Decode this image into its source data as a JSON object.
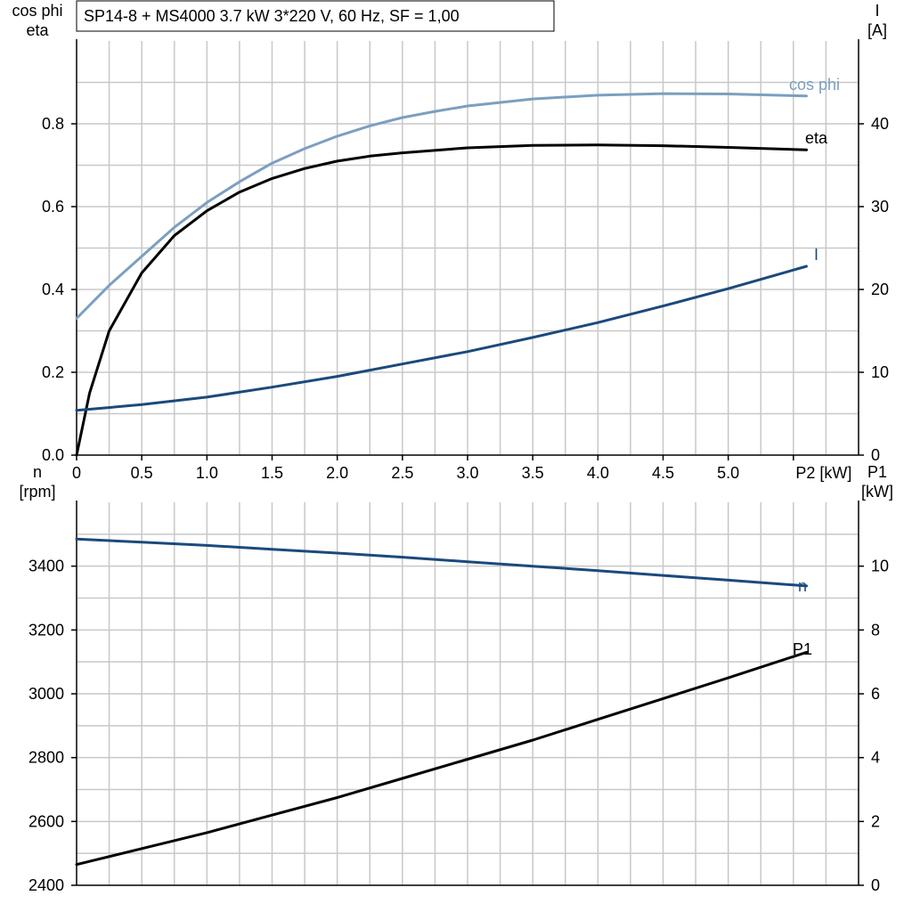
{
  "title": "SP14-8 + MS4000   3.7 kW   3*220 V, 60 Hz, SF = 1,00",
  "colors": {
    "grid": "#c8c8c8",
    "axis": "#000000",
    "cosphi": "#7b9fc0",
    "eta": "#000000",
    "current": "#1a4a7c",
    "speed": "#1a4a7c",
    "p1": "#000000"
  },
  "chart_data": [
    {
      "type": "line",
      "x_label": "P2 [kW]",
      "x_ticks": [
        "0",
        "0.5",
        "1.0",
        "1.5",
        "2.0",
        "2.5",
        "3.0",
        "3.5",
        "4.0",
        "4.5",
        "5.0",
        "P2 [kW]"
      ],
      "xlim": [
        0,
        6.0
      ],
      "y_left_label": [
        "cos phi",
        "eta"
      ],
      "y_left_ticks": [
        "0.0",
        "0.2",
        "0.4",
        "0.6",
        "0.8"
      ],
      "y_left_lim": [
        0,
        1.0
      ],
      "y_right_label": [
        "I",
        "[A]"
      ],
      "y_right_ticks": [
        "0",
        "10",
        "20",
        "30",
        "40"
      ],
      "y_right_lim": [
        0,
        50
      ],
      "grid": true,
      "series": [
        {
          "name": "cos phi",
          "axis": "left",
          "color_key": "cosphi",
          "points": [
            [
              0,
              0.33
            ],
            [
              0.25,
              0.41
            ],
            [
              0.5,
              0.48
            ],
            [
              0.75,
              0.55
            ],
            [
              1.0,
              0.61
            ],
            [
              1.25,
              0.66
            ],
            [
              1.5,
              0.705
            ],
            [
              1.75,
              0.74
            ],
            [
              2.0,
              0.77
            ],
            [
              2.25,
              0.795
            ],
            [
              2.5,
              0.815
            ],
            [
              2.75,
              0.83
            ],
            [
              3.0,
              0.843
            ],
            [
              3.5,
              0.86
            ],
            [
              4.0,
              0.869
            ],
            [
              4.5,
              0.873
            ],
            [
              5.0,
              0.872
            ],
            [
              5.6,
              0.867
            ]
          ]
        },
        {
          "name": "eta",
          "axis": "left",
          "color_key": "eta",
          "points": [
            [
              0,
              0.0
            ],
            [
              0.1,
              0.15
            ],
            [
              0.25,
              0.3
            ],
            [
              0.5,
              0.44
            ],
            [
              0.75,
              0.53
            ],
            [
              1.0,
              0.59
            ],
            [
              1.25,
              0.635
            ],
            [
              1.5,
              0.668
            ],
            [
              1.75,
              0.692
            ],
            [
              2.0,
              0.71
            ],
            [
              2.25,
              0.722
            ],
            [
              2.5,
              0.73
            ],
            [
              3.0,
              0.742
            ],
            [
              3.5,
              0.748
            ],
            [
              4.0,
              0.749
            ],
            [
              4.5,
              0.747
            ],
            [
              5.0,
              0.743
            ],
            [
              5.6,
              0.737
            ]
          ]
        },
        {
          "name": "I",
          "axis": "right",
          "color_key": "current",
          "points": [
            [
              0,
              5.4
            ],
            [
              0.5,
              6.1
            ],
            [
              1.0,
              7.0
            ],
            [
              1.5,
              8.2
            ],
            [
              2.0,
              9.5
            ],
            [
              2.5,
              11.0
            ],
            [
              3.0,
              12.5
            ],
            [
              3.5,
              14.2
            ],
            [
              4.0,
              16.0
            ],
            [
              4.5,
              18.0
            ],
            [
              5.0,
              20.1
            ],
            [
              5.6,
              22.8
            ]
          ]
        }
      ]
    },
    {
      "type": "line",
      "x_ticks": [],
      "xlim": [
        0,
        6.0
      ],
      "y_left_label": [
        "n",
        "[rpm]"
      ],
      "y_left_ticks": [
        "2400",
        "2600",
        "2800",
        "3000",
        "3200",
        "3400"
      ],
      "y_left_lim": [
        2400,
        3600
      ],
      "y_right_label": [
        "P1",
        "[kW]"
      ],
      "y_right_ticks": [
        "0",
        "2",
        "4",
        "6",
        "8",
        "10"
      ],
      "y_right_lim": [
        0,
        12
      ],
      "grid": true,
      "series": [
        {
          "name": "n",
          "axis": "left",
          "color_key": "speed",
          "points": [
            [
              0,
              3485
            ],
            [
              0.5,
              3475
            ],
            [
              1.0,
              3465
            ],
            [
              1.5,
              3453
            ],
            [
              2.0,
              3441
            ],
            [
              2.5,
              3428
            ],
            [
              3.0,
              3414
            ],
            [
              3.5,
              3400
            ],
            [
              4.0,
              3386
            ],
            [
              4.5,
              3371
            ],
            [
              5.0,
              3356
            ],
            [
              5.6,
              3338
            ]
          ]
        },
        {
          "name": "P1",
          "axis": "right",
          "color_key": "p1",
          "points": [
            [
              0,
              0.65
            ],
            [
              0.5,
              1.15
            ],
            [
              1.0,
              1.65
            ],
            [
              1.5,
              2.2
            ],
            [
              2.0,
              2.75
            ],
            [
              2.5,
              3.35
            ],
            [
              3.0,
              3.95
            ],
            [
              3.5,
              4.55
            ],
            [
              4.0,
              5.2
            ],
            [
              4.5,
              5.85
            ],
            [
              5.0,
              6.5
            ],
            [
              5.6,
              7.3
            ]
          ]
        }
      ]
    }
  ]
}
